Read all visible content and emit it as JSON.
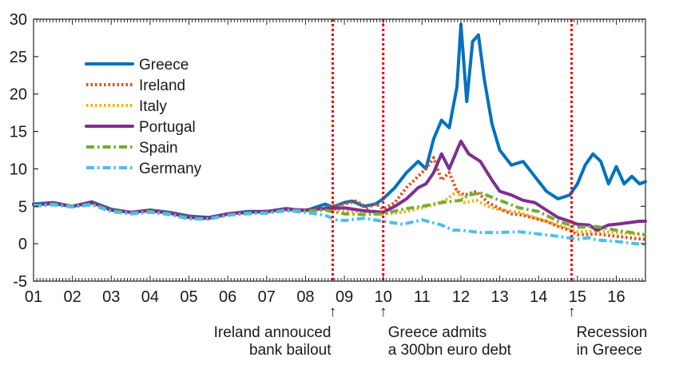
{
  "chart_data": {
    "type": "line",
    "title": "",
    "xlabel": "",
    "ylabel": "",
    "xlim": [
      2001.0,
      2016.75
    ],
    "ylim": [
      -5,
      30
    ],
    "yticks": [
      -5,
      0,
      5,
      10,
      15,
      20,
      25,
      30
    ],
    "xticks": [
      {
        "label": "01",
        "value": 2001
      },
      {
        "label": "02",
        "value": 2002
      },
      {
        "label": "03",
        "value": 2003
      },
      {
        "label": "04",
        "value": 2004
      },
      {
        "label": "05",
        "value": 2005
      },
      {
        "label": "06",
        "value": 2006
      },
      {
        "label": "07",
        "value": 2007
      },
      {
        "label": "08",
        "value": 2008
      },
      {
        "label": "09",
        "value": 2009
      },
      {
        "label": "10",
        "value": 2010
      },
      {
        "label": "11",
        "value": 2011
      },
      {
        "label": "12",
        "value": 2012
      },
      {
        "label": "13",
        "value": 2013
      },
      {
        "label": "14",
        "value": 2014
      },
      {
        "label": "15",
        "value": 2015
      },
      {
        "label": "16",
        "value": 2016
      }
    ],
    "legend_position": "top-left",
    "series": [
      {
        "name": "Greece",
        "color": "#0072bd",
        "dash": "solid",
        "x": [
          2001.0,
          2001.5,
          2002.0,
          2002.5,
          2003.0,
          2003.5,
          2004.0,
          2004.5,
          2005.0,
          2005.5,
          2006.0,
          2006.5,
          2007.0,
          2007.5,
          2008.0,
          2008.5,
          2008.7,
          2009.0,
          2009.2,
          2009.5,
          2009.8,
          2010.0,
          2010.3,
          2010.6,
          2010.9,
          2011.1,
          2011.3,
          2011.5,
          2011.7,
          2011.9,
          2012.0,
          2012.15,
          2012.3,
          2012.45,
          2012.6,
          2012.8,
          2013.0,
          2013.3,
          2013.6,
          2013.9,
          2014.2,
          2014.5,
          2014.8,
          2015.0,
          2015.2,
          2015.4,
          2015.6,
          2015.8,
          2016.0,
          2016.2,
          2016.4,
          2016.6,
          2016.75
        ],
        "values": [
          5.3,
          5.5,
          5.0,
          5.6,
          4.6,
          4.2,
          4.5,
          4.2,
          3.7,
          3.5,
          4.0,
          4.3,
          4.3,
          4.7,
          4.4,
          5.3,
          4.9,
          5.5,
          5.7,
          5.0,
          5.3,
          6.0,
          7.5,
          9.5,
          11.0,
          10.0,
          14.0,
          16.5,
          15.5,
          21.0,
          29.3,
          19.0,
          27.0,
          27.9,
          22.0,
          16.0,
          12.5,
          10.5,
          11.0,
          9.0,
          7.0,
          6.0,
          6.5,
          8.0,
          10.5,
          12.0,
          11.0,
          8.0,
          10.3,
          8.0,
          9.0,
          8.0,
          8.3
        ]
      },
      {
        "name": "Ireland",
        "color": "#d95319",
        "dash": "dot",
        "x": [
          2001.0,
          2001.5,
          2002.0,
          2002.5,
          2003.0,
          2003.5,
          2004.0,
          2004.5,
          2005.0,
          2005.5,
          2006.0,
          2006.5,
          2007.0,
          2007.5,
          2008.0,
          2008.5,
          2008.8,
          2009.0,
          2009.3,
          2009.6,
          2009.8,
          2010.0,
          2010.3,
          2010.6,
          2010.9,
          2011.1,
          2011.3,
          2011.5,
          2011.7,
          2011.9,
          2012.1,
          2012.4,
          2012.7,
          2013.0,
          2013.3,
          2013.6,
          2013.9,
          2014.2,
          2014.5,
          2014.8,
          2015.0,
          2015.5,
          2016.0,
          2016.5,
          2016.75
        ],
        "values": [
          5.2,
          5.3,
          5.0,
          5.4,
          4.5,
          4.2,
          4.4,
          4.1,
          3.6,
          3.3,
          3.9,
          4.2,
          4.2,
          4.6,
          4.5,
          4.8,
          5.2,
          5.3,
          5.7,
          4.8,
          5.4,
          4.6,
          5.5,
          7.5,
          9.0,
          10.0,
          11.5,
          8.5,
          9.5,
          7.0,
          6.5,
          7.0,
          5.5,
          4.7,
          4.0,
          3.8,
          3.4,
          3.0,
          2.3,
          1.8,
          1.2,
          1.3,
          1.0,
          0.7,
          0.6
        ]
      },
      {
        "name": "Italy",
        "color": "#edb120",
        "dash": "dot",
        "x": [
          2001.0,
          2001.5,
          2002.0,
          2002.5,
          2003.0,
          2003.5,
          2004.0,
          2004.5,
          2005.0,
          2005.5,
          2006.0,
          2006.5,
          2007.0,
          2007.5,
          2008.0,
          2008.5,
          2009.0,
          2009.5,
          2010.0,
          2010.5,
          2011.0,
          2011.3,
          2011.6,
          2011.9,
          2012.1,
          2012.4,
          2012.7,
          2013.0,
          2013.5,
          2014.0,
          2014.5,
          2015.0,
          2015.5,
          2016.0,
          2016.5,
          2016.75
        ],
        "values": [
          5.2,
          5.3,
          5.0,
          5.3,
          4.5,
          4.2,
          4.4,
          4.1,
          3.5,
          3.3,
          3.9,
          4.1,
          4.2,
          4.5,
          4.4,
          4.7,
          4.4,
          4.2,
          4.0,
          4.2,
          4.8,
          5.2,
          5.8,
          7.0,
          5.5,
          5.8,
          5.0,
          4.5,
          4.2,
          3.3,
          2.5,
          1.6,
          1.7,
          1.5,
          1.3,
          1.2
        ]
      },
      {
        "name": "Portugal",
        "color": "#7e2f8e",
        "dash": "solid",
        "x": [
          2001.0,
          2001.5,
          2002.0,
          2002.5,
          2003.0,
          2003.5,
          2004.0,
          2004.5,
          2005.0,
          2005.5,
          2006.0,
          2006.5,
          2007.0,
          2007.5,
          2008.0,
          2008.5,
          2009.0,
          2009.5,
          2010.0,
          2010.3,
          2010.6,
          2010.9,
          2011.1,
          2011.3,
          2011.5,
          2011.7,
          2011.9,
          2012.0,
          2012.2,
          2012.5,
          2012.8,
          2013.0,
          2013.3,
          2013.6,
          2013.9,
          2014.2,
          2014.5,
          2014.8,
          2015.0,
          2015.3,
          2015.5,
          2015.8,
          2016.0,
          2016.3,
          2016.6,
          2016.75
        ],
        "values": [
          5.2,
          5.4,
          5.0,
          5.5,
          4.5,
          4.2,
          4.4,
          4.1,
          3.5,
          3.4,
          4.0,
          4.2,
          4.3,
          4.6,
          4.5,
          4.7,
          4.8,
          4.4,
          4.2,
          5.0,
          6.0,
          7.5,
          8.0,
          9.5,
          12.0,
          10.0,
          12.5,
          13.7,
          12.0,
          11.0,
          8.5,
          7.0,
          6.5,
          5.8,
          5.5,
          4.5,
          3.5,
          3.0,
          2.6,
          2.5,
          1.8,
          2.5,
          2.6,
          2.8,
          3.0,
          3.0
        ]
      },
      {
        "name": "Spain",
        "color": "#77ac30",
        "dash": "dashdot",
        "x": [
          2001.0,
          2001.5,
          2002.0,
          2002.5,
          2003.0,
          2003.5,
          2004.0,
          2004.5,
          2005.0,
          2005.5,
          2006.0,
          2006.5,
          2007.0,
          2007.5,
          2008.0,
          2008.5,
          2009.0,
          2009.5,
          2010.0,
          2010.5,
          2011.0,
          2011.5,
          2012.0,
          2012.2,
          2012.5,
          2012.8,
          2013.0,
          2013.5,
          2014.0,
          2014.5,
          2015.0,
          2015.5,
          2016.0,
          2016.5,
          2016.75
        ],
        "values": [
          5.1,
          5.3,
          5.0,
          5.3,
          4.4,
          4.1,
          4.3,
          4.0,
          3.4,
          3.3,
          3.8,
          4.1,
          4.1,
          4.5,
          4.4,
          4.5,
          4.0,
          3.9,
          4.0,
          4.6,
          5.0,
          5.5,
          5.8,
          6.5,
          6.8,
          6.2,
          5.8,
          4.8,
          4.3,
          3.0,
          2.2,
          2.3,
          1.8,
          1.4,
          1.2
        ]
      },
      {
        "name": "Germany",
        "color": "#4dbeee",
        "dash": "dashdot",
        "x": [
          2001.0,
          2001.5,
          2002.0,
          2002.5,
          2003.0,
          2003.5,
          2004.0,
          2004.5,
          2005.0,
          2005.5,
          2006.0,
          2006.5,
          2007.0,
          2007.5,
          2008.0,
          2008.5,
          2008.8,
          2009.0,
          2009.5,
          2010.0,
          2010.5,
          2011.0,
          2011.5,
          2011.8,
          2012.0,
          2012.5,
          2013.0,
          2013.5,
          2014.0,
          2014.5,
          2015.0,
          2015.3,
          2015.5,
          2016.0,
          2016.5,
          2016.75
        ],
        "values": [
          5.0,
          5.2,
          4.9,
          5.2,
          4.3,
          4.0,
          4.2,
          3.9,
          3.3,
          3.3,
          3.8,
          4.0,
          4.1,
          4.4,
          4.2,
          3.8,
          3.2,
          3.1,
          3.4,
          3.0,
          2.6,
          3.2,
          2.5,
          1.8,
          1.8,
          1.5,
          1.5,
          1.6,
          1.3,
          1.0,
          0.6,
          0.8,
          0.5,
          0.3,
          0.0,
          -0.1
        ]
      }
    ],
    "vlines": [
      {
        "x": 2008.7,
        "color": "#e8000b",
        "style": "dotted"
      },
      {
        "x": 2010.0,
        "color": "#e8000b",
        "style": "dotted"
      },
      {
        "x": 2014.85,
        "color": "#e8000b",
        "style": "dotted"
      }
    ],
    "annotations": [
      {
        "x": 2008.7,
        "lines": [
          "Ireland annouced",
          "bank bailout"
        ],
        "align": "end"
      },
      {
        "x": 2010.0,
        "lines": [
          "Greece admits",
          "a 300bn euro debt"
        ],
        "align": "start"
      },
      {
        "x": 2014.85,
        "lines": [
          "Recession",
          "in Greece"
        ],
        "align": "start"
      }
    ],
    "arrow_symbol": "↑"
  }
}
